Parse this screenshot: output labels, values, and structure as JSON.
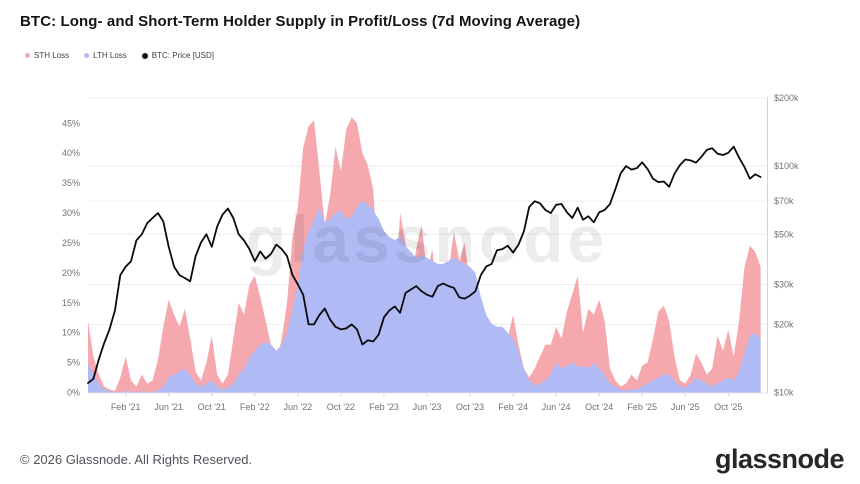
{
  "header": {
    "title": "BTC: Long- and Short-Term Holder Supply in Profit/Loss (7d Moving Average)"
  },
  "legend": [
    {
      "label": "STH Loss",
      "color": "#f5a8ae"
    },
    {
      "label": "LTH Loss",
      "color": "#b0baf4"
    },
    {
      "label": "BTC: Price [USD]",
      "color": "#0b0b0d"
    }
  ],
  "watermark": "glassnode",
  "footer": {
    "copyright": "© 2026 Glassnode. All Rights Reserved.",
    "brand": "glassnode"
  },
  "chart_data": {
    "type": "area",
    "title": "BTC: Long- and Short-Term Holder Supply in Profit/Loss (7d Moving Average)",
    "x_start": "Oct 2020",
    "x_end": "Dec 2025",
    "x_step_months": 0.5,
    "x_tick_labels": [
      "Feb '21",
      "Jun '21",
      "Oct '21",
      "Feb '22",
      "Jun '22",
      "Oct '22",
      "Feb '23",
      "Jun '23",
      "Oct '23",
      "Feb '24",
      "Jun '24",
      "Oct '24",
      "Feb '25",
      "Jun '25",
      "Oct '25"
    ],
    "x_tick_first_t": 3.5,
    "x_tick_step_t": 4,
    "left_axis": {
      "unit": "%",
      "ticks": [
        0,
        5,
        10,
        15,
        20,
        25,
        30,
        35,
        40,
        45
      ],
      "max": 49.4,
      "grid": false
    },
    "right_axis": {
      "unit": "USD",
      "scale": "log",
      "ticks_k": [
        10,
        20,
        30,
        50,
        70,
        100,
        200
      ],
      "top_value_k": 202,
      "grid": true
    },
    "legend_position": "top-left",
    "series": [
      {
        "name": "STH Loss",
        "axis": "left",
        "style": "area",
        "color": "#f5a8ae",
        "values_pct": [
          12,
          6,
          3,
          1,
          0.5,
          0.3,
          2.5,
          6,
          2,
          1,
          3,
          1.5,
          2,
          5.5,
          11,
          15.5,
          13,
          11,
          14,
          9,
          3.5,
          2,
          5,
          9.5,
          3,
          1.5,
          3,
          9,
          15,
          13,
          18,
          19.5,
          16,
          12,
          8,
          5,
          9,
          15,
          26,
          31,
          41,
          44.5,
          45.5,
          37,
          28,
          33,
          41,
          37,
          44,
          46,
          45,
          40,
          38,
          34,
          20,
          10,
          8,
          14,
          30,
          25,
          18,
          24,
          28,
          20,
          24,
          14,
          12,
          20,
          27,
          22,
          25,
          18,
          12,
          5,
          3,
          4,
          4,
          6,
          9,
          13,
          8,
          4,
          2.5,
          4,
          6,
          8,
          8,
          11,
          9,
          13.5,
          16.5,
          19.5,
          10,
          14,
          13,
          15.5,
          12,
          4,
          2,
          1,
          1.5,
          3,
          2,
          4.5,
          5,
          9,
          13.5,
          14.5,
          12,
          6,
          2,
          1.5,
          3,
          6.5,
          5,
          3,
          4,
          9.5,
          7,
          10.5,
          6,
          12,
          21,
          24.5,
          23.5,
          21
        ]
      },
      {
        "name": "LTH Loss",
        "axis": "left",
        "style": "area",
        "color": "#b0baf4",
        "values_pct": [
          5,
          3,
          1.5,
          0.5,
          0.2,
          0.1,
          0.1,
          0.2,
          0.1,
          0.1,
          0.2,
          0.1,
          0.1,
          0.3,
          1,
          2.5,
          3,
          3.5,
          4,
          3,
          1.5,
          1,
          1.5,
          2,
          1,
          0.5,
          0.8,
          1.5,
          3,
          4,
          6,
          7,
          8,
          8.5,
          8,
          7,
          8,
          10,
          14,
          18,
          24,
          27,
          29,
          31,
          28.5,
          29,
          30,
          30.5,
          29,
          29.5,
          31,
          32,
          31.5,
          30.5,
          29,
          27,
          26,
          25.5,
          26,
          24.5,
          23.5,
          22.5,
          23,
          22.5,
          22,
          21.5,
          21.5,
          22,
          22.5,
          22,
          21.5,
          21,
          20,
          16,
          13,
          11.5,
          11,
          11,
          10,
          9,
          7,
          4,
          2,
          1.2,
          1.5,
          2,
          3,
          5,
          4,
          4.5,
          5,
          4.2,
          4.5,
          4,
          5,
          4,
          3,
          1.5,
          1,
          0.5,
          0.3,
          0.5,
          0.5,
          1,
          1.5,
          2,
          2.5,
          3,
          3,
          2,
          1,
          0.8,
          1.5,
          2.5,
          2,
          1.5,
          1,
          1.5,
          2,
          2.5,
          2,
          3.5,
          6.5,
          9.5,
          10,
          9
        ]
      },
      {
        "name": "BTC: Price [USD]",
        "axis": "right",
        "style": "line",
        "color": "#0b0b0d",
        "values_usd_k": [
          11,
          11.5,
          14,
          16.5,
          19,
          23,
          33,
          36,
          38,
          47,
          50,
          56,
          59,
          62,
          57,
          44,
          36,
          33,
          32,
          31,
          40,
          46,
          50,
          44,
          54,
          61,
          65,
          59,
          50,
          47,
          43,
          38,
          42,
          39,
          41,
          45,
          43,
          40,
          33,
          30,
          27,
          20,
          20,
          22,
          23.5,
          21,
          19.5,
          19,
          19.2,
          20,
          19,
          16.3,
          17,
          16.8,
          18,
          21.5,
          23,
          24,
          22.5,
          27.5,
          28.5,
          29.5,
          28,
          27,
          26.5,
          29.5,
          30.3,
          29.5,
          29,
          26.3,
          26,
          26.8,
          28,
          33,
          36,
          37,
          42.5,
          43,
          44.5,
          41.5,
          45,
          51.5,
          66,
          70,
          68.5,
          64,
          62,
          67.5,
          68,
          62.5,
          59,
          65.5,
          58,
          60,
          56.5,
          62.5,
          64,
          68,
          79,
          93,
          100,
          96.5,
          98,
          104,
          97,
          88,
          85,
          85.5,
          81,
          92.5,
          101,
          107,
          106,
          103.5,
          110,
          118,
          120,
          113.5,
          112,
          114.5,
          122,
          109,
          99,
          88,
          92,
          89.5
        ]
      }
    ]
  }
}
